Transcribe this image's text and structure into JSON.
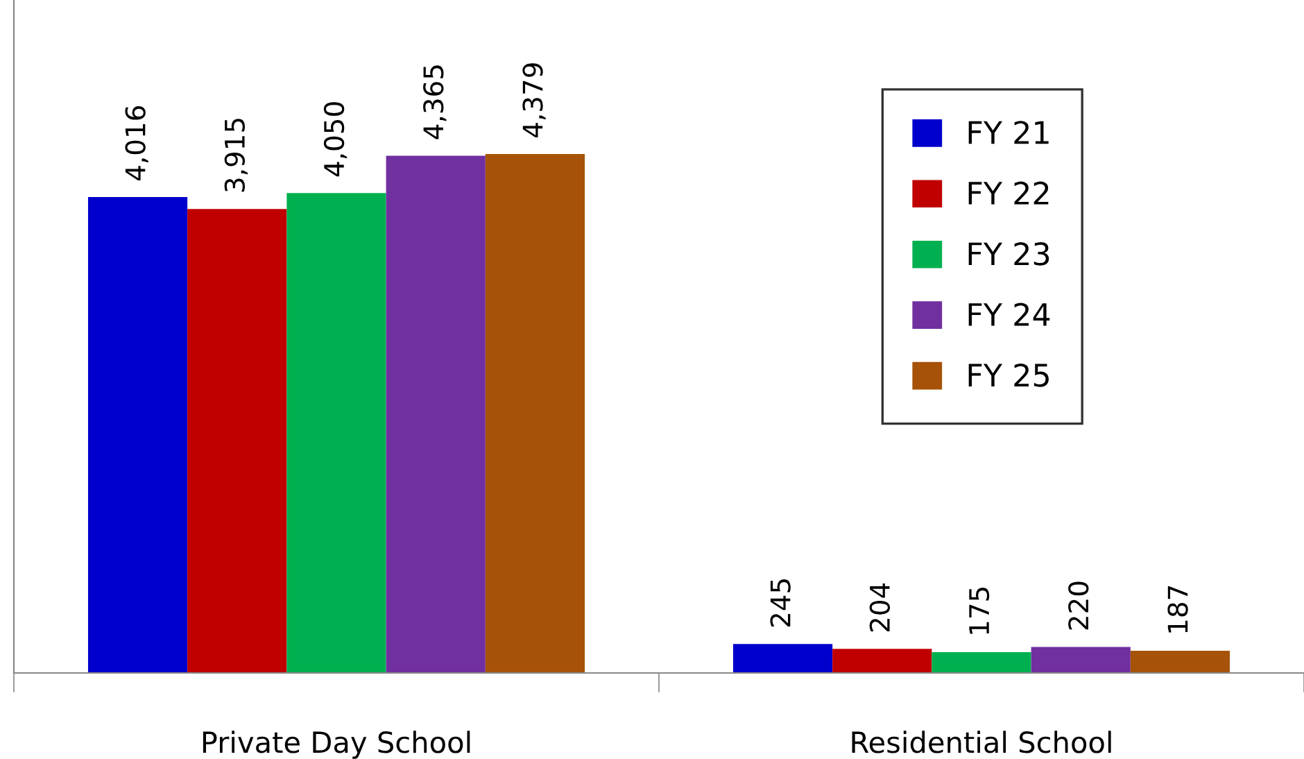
{
  "chart_data": {
    "type": "bar",
    "categories": [
      "Private Day School",
      "Residential School"
    ],
    "series": [
      {
        "name": "FY 21",
        "color": "#0000cc",
        "values": [
          4016,
          245
        ],
        "value_labels": [
          "4,016",
          "245"
        ]
      },
      {
        "name": "FY 22",
        "color": "#c00000",
        "values": [
          3915,
          204
        ],
        "value_labels": [
          "3,915",
          "204"
        ]
      },
      {
        "name": "FY 23",
        "color": "#00b050",
        "values": [
          4050,
          175
        ],
        "value_labels": [
          "4,050",
          "175"
        ]
      },
      {
        "name": "FY 24",
        "color": "#7030a0",
        "values": [
          4365,
          220
        ],
        "value_labels": [
          "4,365",
          "220"
        ]
      },
      {
        "name": "FY 25",
        "color": "#a65208",
        "values": [
          4379,
          187
        ],
        "value_labels": [
          "4,379",
          "187"
        ]
      }
    ],
    "legend": "top right",
    "grid": false
  }
}
